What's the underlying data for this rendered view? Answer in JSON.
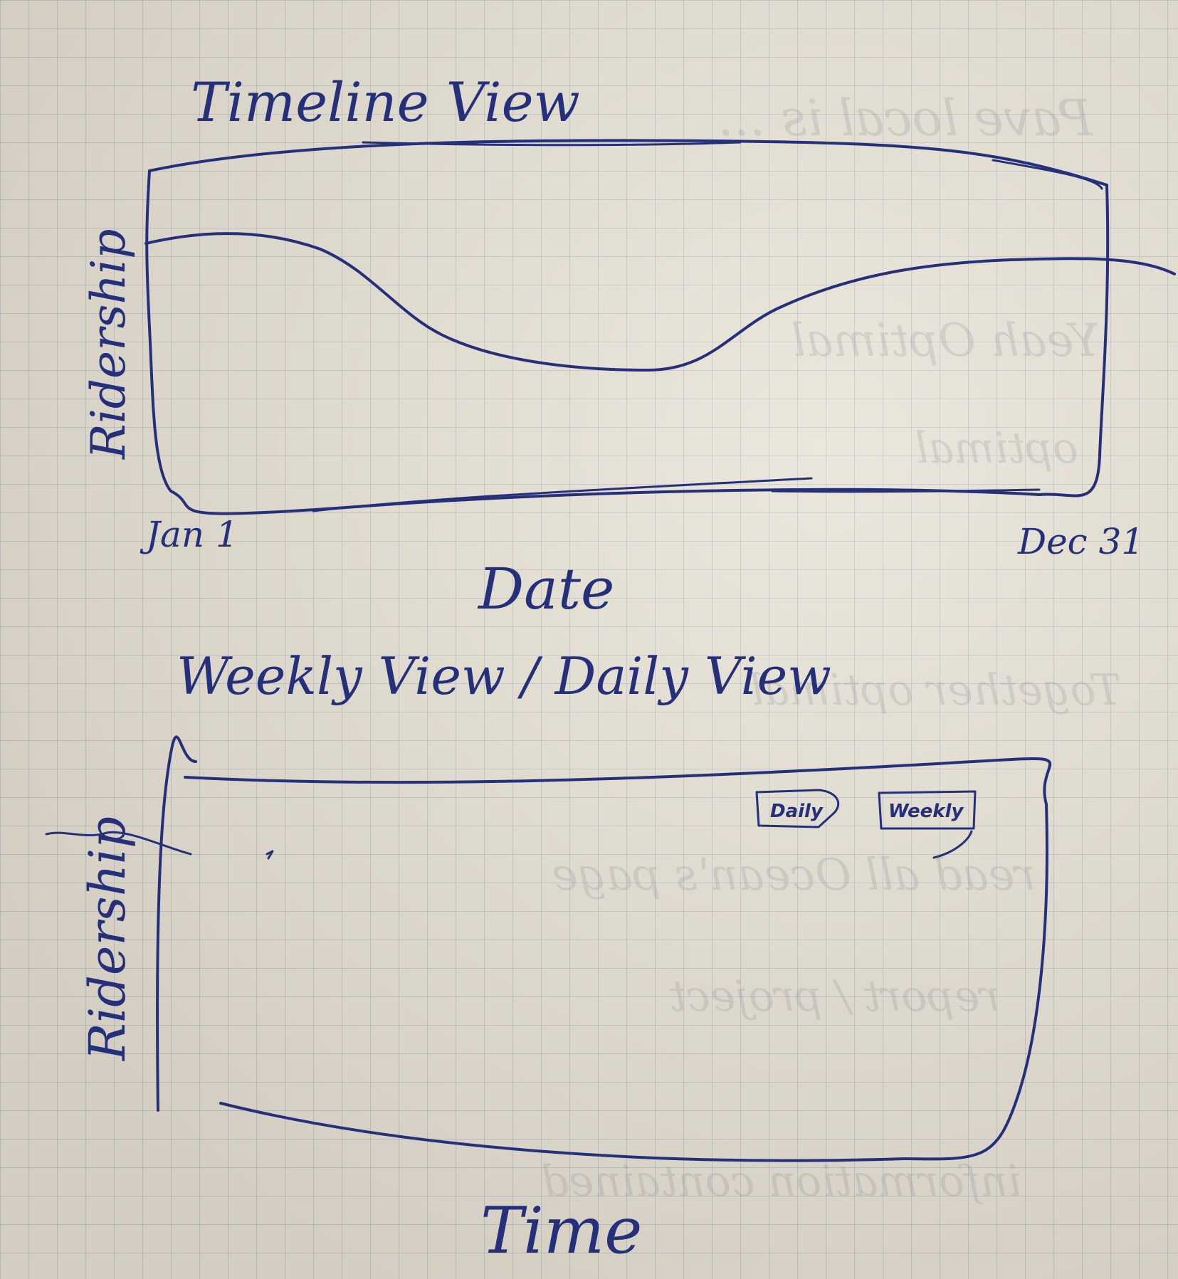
{
  "timeline": {
    "title": "Timeline View",
    "ylabel": "Ridership",
    "start_label": "Jan 1",
    "end_label": "Dec 31",
    "xlabel": "Date"
  },
  "weekly": {
    "title": "Weekly View / Daily View",
    "ylabel": "Ridership",
    "toggle_daily": "Daily",
    "toggle_weekly": "Weekly",
    "xlabel": "Time"
  },
  "colors": {
    "ink": "#26307a",
    "paper": "#e6e0d2"
  }
}
